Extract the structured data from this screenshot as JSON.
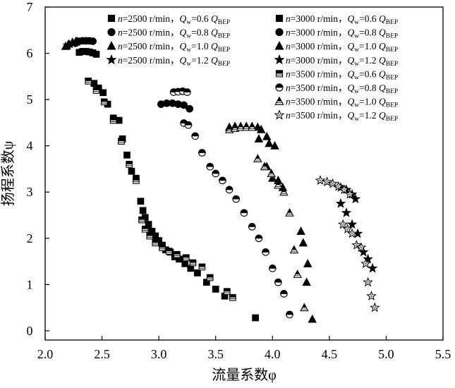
{
  "chart_data": {
    "type": "scatter",
    "title": "",
    "xlabel": "流量系数φ",
    "ylabel": "扬程系数ψ",
    "xlim": [
      2.0,
      5.5
    ],
    "ylim": [
      -0.2,
      7.0
    ],
    "xticks": [
      "2.0",
      "2.5",
      "3.0",
      "3.5",
      "4.0",
      "4.5",
      "5.0",
      "5.5"
    ],
    "yticks": [
      "0",
      "1",
      "2",
      "3",
      "4",
      "5",
      "6",
      "7"
    ],
    "grid": false,
    "legend_position": "top-right",
    "series": [
      {
        "name": "n=2500 r/min，Q_w=0.6 Q_BEP",
        "speed": "2500",
        "flow": "0.6",
        "marker": "square",
        "style": "filled",
        "points": [
          [
            2.43,
            5.35
          ],
          [
            2.47,
            5.25
          ],
          [
            2.51,
            5.15
          ],
          [
            2.55,
            4.9
          ],
          [
            2.6,
            4.6
          ],
          [
            2.65,
            4.55
          ],
          [
            2.68,
            4.15
          ],
          [
            2.72,
            3.8
          ],
          [
            2.76,
            3.45
          ],
          [
            2.8,
            3.3
          ],
          [
            2.84,
            2.8
          ],
          [
            2.86,
            2.6
          ],
          [
            2.88,
            2.45
          ],
          [
            2.91,
            2.3
          ],
          [
            2.94,
            2.15
          ],
          [
            2.97,
            2.05
          ],
          [
            3.0,
            1.95
          ],
          [
            3.03,
            1.85
          ],
          [
            3.06,
            1.75
          ],
          [
            3.1,
            1.7
          ],
          [
            3.14,
            1.6
          ],
          [
            3.18,
            1.55
          ],
          [
            3.23,
            1.45
          ],
          [
            3.28,
            1.35
          ],
          [
            3.34,
            1.25
          ],
          [
            3.42,
            1.05
          ],
          [
            3.5,
            0.9
          ],
          [
            3.58,
            0.75
          ],
          [
            3.85,
            0.28
          ]
        ]
      },
      {
        "name": "n=2500 r/min，Q_w=0.8 Q_BEP",
        "speed": "2500",
        "flow": "0.8",
        "marker": "circle",
        "style": "filled",
        "points": [
          [
            2.27,
            6.22
          ],
          [
            2.3,
            6.26
          ],
          [
            2.33,
            6.27
          ],
          [
            2.36,
            6.27
          ],
          [
            2.39,
            6.27
          ],
          [
            2.42,
            6.26
          ]
        ]
      },
      {
        "name": "n=2500 r/min，Q_w=1.0 Q_BEP",
        "speed": "2500",
        "flow": "1.0",
        "marker": "triangle",
        "style": "filled",
        "points": [
          [
            2.18,
            6.15
          ],
          [
            2.21,
            6.2
          ],
          [
            2.24,
            6.24
          ],
          [
            2.27,
            6.26
          ]
        ]
      },
      {
        "name": "n=2500 r/min，Q_w=1.2 Q_BEP",
        "speed": "2500",
        "flow": "1.2",
        "marker": "star",
        "style": "filled",
        "points": [
          [
            2.2,
            6.17
          ],
          [
            2.24,
            6.22
          ],
          [
            2.28,
            6.25
          ]
        ]
      },
      {
        "name": "n=3000 r/min，Q_w=0.6 Q_BEP",
        "speed": "3000",
        "flow": "0.6",
        "marker": "square",
        "style": "filled",
        "points": [
          [
            2.3,
            6.02
          ],
          [
            2.33,
            6.04
          ],
          [
            2.36,
            6.04
          ],
          [
            2.39,
            6.03
          ],
          [
            2.42,
            6.01
          ],
          [
            2.45,
            5.98
          ]
        ]
      },
      {
        "name": "n=3000 r/min，Q_w=0.8 Q_BEP",
        "speed": "3000",
        "flow": "0.8",
        "marker": "circle",
        "style": "filled",
        "points": [
          [
            3.02,
            4.9
          ],
          [
            3.07,
            4.92
          ],
          [
            3.12,
            4.92
          ],
          [
            3.17,
            4.9
          ],
          [
            3.22,
            4.88
          ],
          [
            3.27,
            4.8
          ]
        ]
      },
      {
        "name": "n=3000 r/min，Q_w=1.0 Q_BEP",
        "speed": "3000",
        "flow": "1.0",
        "marker": "triangle",
        "style": "filled",
        "points": [
          [
            3.62,
            4.4
          ],
          [
            3.67,
            4.42
          ],
          [
            3.72,
            4.42
          ],
          [
            3.77,
            4.42
          ],
          [
            3.82,
            4.42
          ],
          [
            3.87,
            4.4
          ],
          [
            3.9,
            4.35
          ],
          [
            3.95,
            4.2
          ],
          [
            3.88,
            4.15
          ],
          [
            3.97,
            4.05
          ],
          [
            4.02,
            4.0
          ],
          [
            3.95,
            3.55
          ],
          [
            4.0,
            3.3
          ],
          [
            4.05,
            3.25
          ],
          [
            4.09,
            3.1
          ],
          [
            4.25,
            2.15
          ],
          [
            4.27,
            1.9
          ],
          [
            4.31,
            1.45
          ],
          [
            4.3,
            1.05
          ],
          [
            4.35,
            0.25
          ]
        ]
      },
      {
        "name": "n=3000 r/min，Q_w=1.2 Q_BEP",
        "speed": "3000",
        "flow": "1.2",
        "marker": "star",
        "style": "filled",
        "points": [
          [
            4.6,
            3.1
          ],
          [
            4.65,
            3.05
          ],
          [
            4.7,
            2.95
          ],
          [
            4.73,
            2.85
          ],
          [
            4.6,
            2.75
          ],
          [
            4.65,
            2.55
          ],
          [
            4.7,
            2.3
          ],
          [
            4.75,
            2.1
          ],
          [
            4.8,
            1.7
          ],
          [
            4.84,
            1.55
          ],
          [
            4.88,
            1.35
          ]
        ]
      },
      {
        "name": "n=3500 r/min，Q_w=0.6 Q_BEP",
        "speed": "3500",
        "flow": "0.6",
        "marker": "square",
        "style": "half",
        "points": [
          [
            2.38,
            5.4
          ],
          [
            2.45,
            5.2
          ],
          [
            2.52,
            4.95
          ],
          [
            2.6,
            4.55
          ],
          [
            2.67,
            4.1
          ],
          [
            2.74,
            3.6
          ],
          [
            2.8,
            3.25
          ],
          [
            2.85,
            2.4
          ],
          [
            2.88,
            2.2
          ],
          [
            2.92,
            2.05
          ],
          [
            2.97,
            1.9
          ],
          [
            3.03,
            1.8
          ],
          [
            3.09,
            1.72
          ],
          [
            3.16,
            1.65
          ],
          [
            3.24,
            1.58
          ],
          [
            3.3,
            1.47
          ],
          [
            3.38,
            1.38
          ],
          [
            3.45,
            1.15
          ],
          [
            3.6,
            0.85
          ],
          [
            3.65,
            0.72
          ]
        ]
      },
      {
        "name": "n=3500 r/min，Q_w=0.8 Q_BEP",
        "speed": "3500",
        "flow": "0.8",
        "marker": "circle",
        "style": "half",
        "points": [
          [
            3.13,
            5.16
          ],
          [
            3.17,
            5.17
          ],
          [
            3.21,
            5.18
          ],
          [
            3.25,
            5.16
          ],
          [
            3.22,
            4.49
          ],
          [
            3.26,
            4.45
          ],
          [
            3.32,
            4.21
          ],
          [
            3.38,
            3.85
          ],
          [
            3.45,
            3.55
          ],
          [
            3.5,
            3.4
          ],
          [
            3.56,
            3.25
          ],
          [
            3.62,
            3.05
          ],
          [
            3.68,
            2.85
          ],
          [
            3.75,
            2.55
          ],
          [
            3.82,
            2.25
          ],
          [
            3.88,
            2.0
          ],
          [
            3.94,
            1.7
          ],
          [
            4.0,
            1.35
          ],
          [
            4.05,
            1.05
          ],
          [
            4.1,
            0.8
          ],
          [
            4.15,
            0.35
          ]
        ]
      },
      {
        "name": "n=3500 r/min，Q_w=1.0 Q_BEP",
        "speed": "3500",
        "flow": "1.0",
        "marker": "triangle",
        "style": "half",
        "points": [
          [
            3.62,
            4.35
          ],
          [
            3.67,
            4.38
          ],
          [
            3.72,
            4.4
          ],
          [
            3.77,
            4.4
          ],
          [
            3.82,
            4.4
          ],
          [
            3.87,
            3.72
          ],
          [
            3.93,
            3.55
          ],
          [
            3.99,
            3.4
          ],
          [
            4.05,
            3.15
          ],
          [
            4.1,
            3.0
          ],
          [
            4.15,
            2.55
          ],
          [
            4.19,
            1.75
          ],
          [
            4.22,
            1.22
          ],
          [
            4.28,
            0.5
          ]
        ]
      },
      {
        "name": "n=3500 r/min，Q_w=1.2 Q_BEP",
        "speed": "3500",
        "flow": "1.2",
        "marker": "star",
        "style": "hollow",
        "points": [
          [
            4.42,
            3.25
          ],
          [
            4.48,
            3.22
          ],
          [
            4.53,
            3.18
          ],
          [
            4.58,
            3.12
          ],
          [
            4.63,
            3.05
          ],
          [
            4.68,
            2.95
          ],
          [
            4.62,
            2.3
          ],
          [
            4.66,
            2.2
          ],
          [
            4.7,
            2.1
          ],
          [
            4.74,
            1.85
          ],
          [
            4.78,
            1.8
          ],
          [
            4.82,
            1.45
          ],
          [
            4.84,
            1.05
          ],
          [
            4.87,
            0.75
          ],
          [
            4.9,
            0.5
          ]
        ]
      }
    ]
  }
}
